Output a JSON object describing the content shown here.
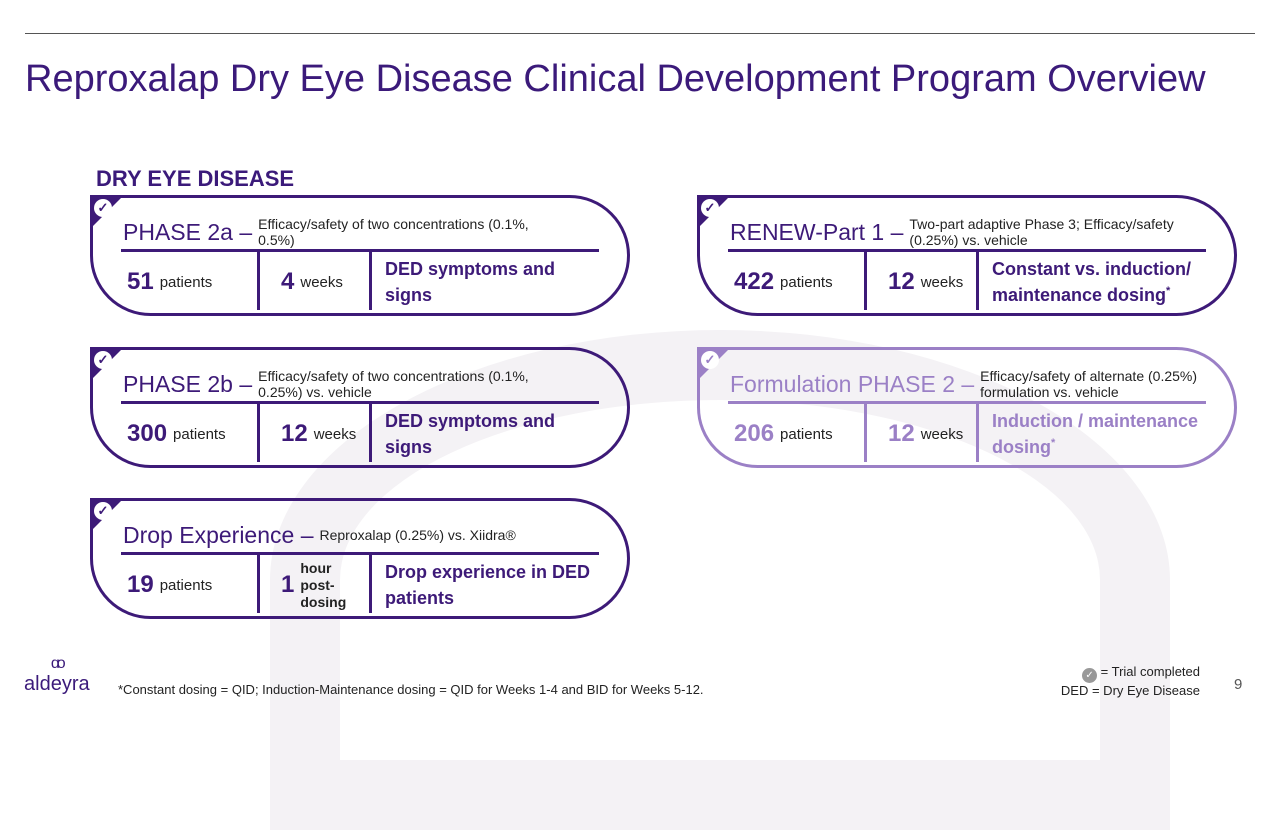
{
  "title": "Reproxalap Dry Eye Disease Clinical Development Program Overview",
  "section": "DRY EYE DISEASE",
  "colors": {
    "primary": "#3d1a78",
    "light": "#9b80c6"
  },
  "cards": [
    {
      "id": "phase-2a",
      "name": "PHASE 2a –",
      "desc": "Efficacy/safety of two concentrations (0.1%, 0.5%)",
      "patients": "51",
      "patients_unit": "patients",
      "duration": "4",
      "duration_unit": "weeks",
      "outcome": "DED symptoms and signs",
      "asterisk": "",
      "completed": true,
      "style": "primary"
    },
    {
      "id": "phase-2b",
      "name": "PHASE 2b –",
      "desc": "Efficacy/safety of two concentrations (0.1%, 0.25%) vs. vehicle",
      "patients": "300",
      "patients_unit": "patients",
      "duration": "12",
      "duration_unit": "weeks",
      "outcome": "DED symptoms and signs",
      "asterisk": "",
      "completed": true,
      "style": "primary"
    },
    {
      "id": "drop-experience",
      "name": "Drop Experience –",
      "desc": "Reproxalap (0.25%) vs. Xiidra®",
      "patients": "19",
      "patients_unit": "patients",
      "duration": "1",
      "duration_unit": "hour post-dosing",
      "outcome": "Drop experience in DED patients",
      "asterisk": "",
      "completed": true,
      "style": "primary"
    },
    {
      "id": "renew-part-1",
      "name": "RENEW-Part 1 –",
      "desc": "Two-part adaptive Phase 3; Efficacy/safety (0.25%) vs. vehicle",
      "patients": "422",
      "patients_unit": "patients",
      "duration": "12",
      "duration_unit": "weeks",
      "outcome": "Constant vs. induction/ maintenance dosing",
      "asterisk": "*",
      "completed": true,
      "style": "primary"
    },
    {
      "id": "formulation-phase-2",
      "name": "Formulation PHASE 2 –",
      "desc": "Efficacy/safety of alternate (0.25%) formulation vs. vehicle",
      "patients": "206",
      "patients_unit": "patients",
      "duration": "12",
      "duration_unit": "weeks",
      "outcome": "Induction / maintenance dosing",
      "asterisk": "*",
      "completed": true,
      "style": "light"
    }
  ],
  "footer": {
    "logo": "aldeyra",
    "footnote": "*Constant dosing = QID; Induction-Maintenance dosing = QID for Weeks 1-4 and BID for Weeks 5-12.",
    "legend_completed": "= Trial completed",
    "legend_ded": "DED = Dry Eye Disease",
    "page": "9"
  }
}
